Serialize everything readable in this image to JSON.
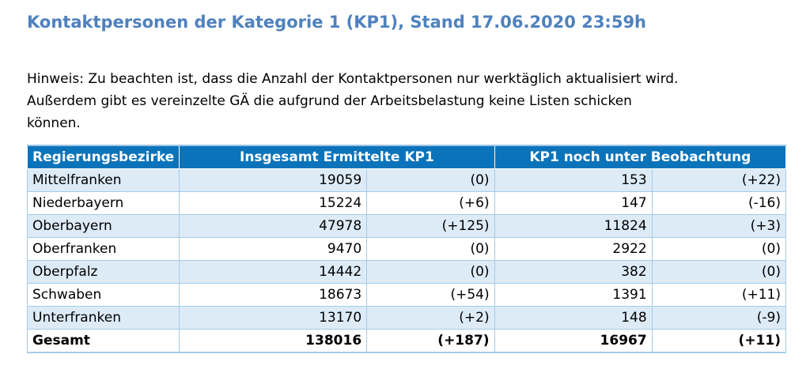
{
  "title": "Kontaktpersonen der Kategorie 1 (KP1), Stand 17.06.2020 23:59h",
  "note": {
    "line1": "Hinweis: Zu beachten ist, dass die Anzahl der Kontaktpersonen nur werktäglich aktualisiert wird.",
    "line2": "Außerdem gibt es vereinzelte GÄ die aufgrund der Arbeitsbelastung keine Listen schicken",
    "line3": "können."
  },
  "table": {
    "headers": {
      "region": "Regierungsbezirke",
      "total": "Insgesamt Ermittelte KP1",
      "observed": "KP1 noch unter Beobachtung"
    },
    "rows": [
      {
        "name": "Mittelfranken",
        "total": "19059",
        "total_change": "(0)",
        "observed": "153",
        "observed_change": "(+22)"
      },
      {
        "name": "Niederbayern",
        "total": "15224",
        "total_change": "(+6)",
        "observed": "147",
        "observed_change": "(-16)"
      },
      {
        "name": "Oberbayern",
        "total": "47978",
        "total_change": "(+125)",
        "observed": "11824",
        "observed_change": "(+3)"
      },
      {
        "name": "Oberfranken",
        "total": "9470",
        "total_change": "(0)",
        "observed": "2922",
        "observed_change": "(0)"
      },
      {
        "name": "Oberpfalz",
        "total": "14442",
        "total_change": "(0)",
        "observed": "382",
        "observed_change": "(0)"
      },
      {
        "name": "Schwaben",
        "total": "18673",
        "total_change": "(+54)",
        "observed": "1391",
        "observed_change": "(+11)"
      },
      {
        "name": "Unterfranken",
        "total": "13170",
        "total_change": "(+2)",
        "observed": "148",
        "observed_change": "(-9)"
      }
    ],
    "total_row": {
      "name": "Gesamt",
      "total": "138016",
      "total_change": "(+187)",
      "observed": "16967",
      "observed_change": "(+11)"
    }
  },
  "colors": {
    "title": "#4f81bd",
    "header_bg": "#0b73ba",
    "row_stripe": "#ddebf7",
    "border": "#a4cbe8"
  }
}
